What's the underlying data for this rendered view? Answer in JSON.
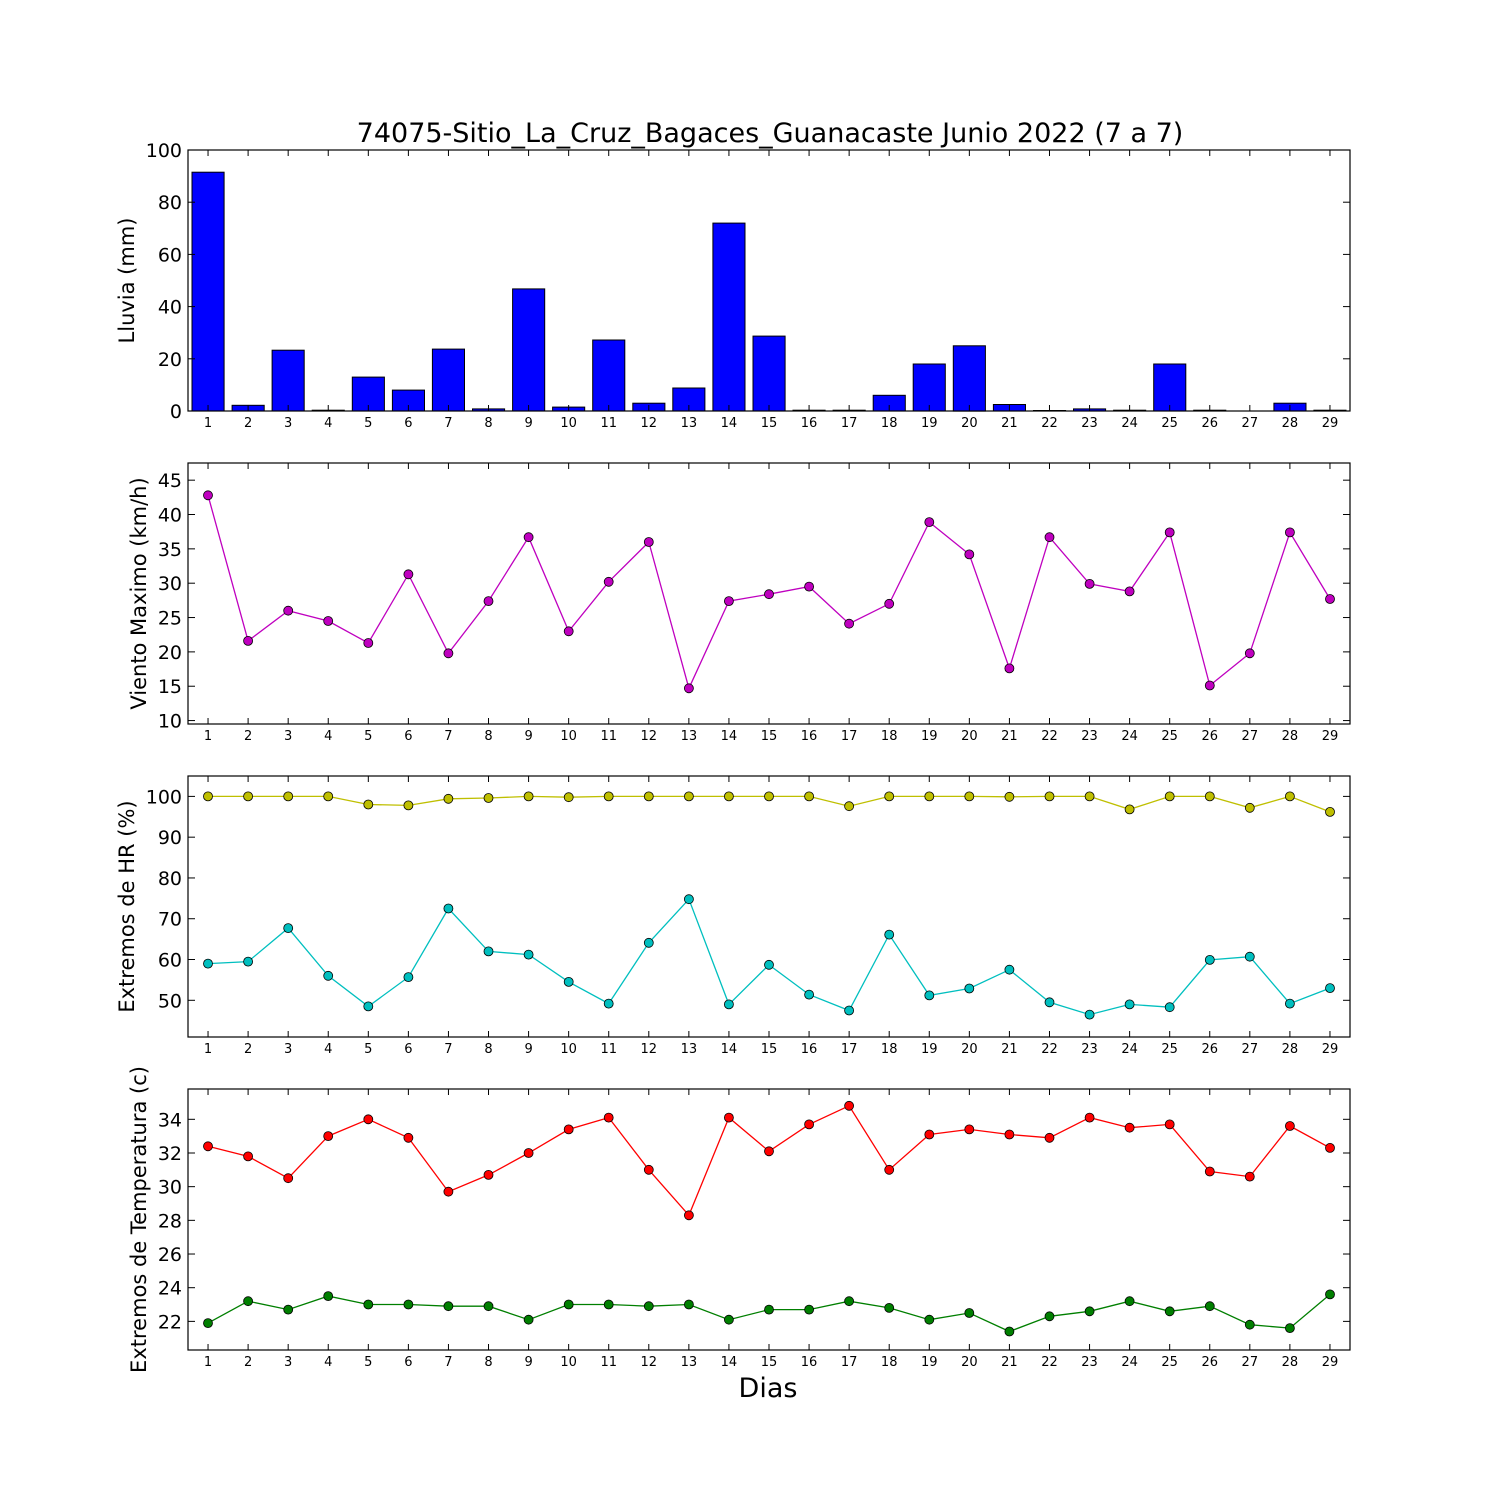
{
  "chart_data": {
    "title": "74075-Sitio_La_Cruz_Bagaces_Guanacaste Junio 2022  (7 a 7)",
    "xlabel": "Dias",
    "days": [
      1,
      2,
      3,
      4,
      5,
      6,
      7,
      8,
      9,
      10,
      11,
      12,
      13,
      14,
      15,
      16,
      17,
      18,
      19,
      20,
      21,
      22,
      23,
      24,
      25,
      26,
      27,
      28,
      29
    ],
    "panels": [
      {
        "type": "bar",
        "ylabel": "Lluvia (mm)",
        "ylim": [
          0,
          100
        ],
        "yticks": [
          0,
          20,
          40,
          60,
          80,
          100
        ],
        "series": [
          {
            "color": "#0000ff",
            "values": [
              91.5,
              2.2,
              23.3,
              0.3,
              13.0,
              8.0,
              23.7,
              0.8,
              46.8,
              1.5,
              27.2,
              3.0,
              8.8,
              72.0,
              28.7,
              0.3,
              0.3,
              6.0,
              18.0,
              25.0,
              2.5,
              0.2,
              0.8,
              0.3,
              18.0,
              0.3,
              0.0,
              3.0,
              0.3
            ]
          }
        ]
      },
      {
        "type": "line",
        "ylabel": "Viento Maximo (km/h)",
        "ylim": [
          9.5,
          47.5
        ],
        "yticks": [
          10,
          15,
          20,
          25,
          30,
          35,
          40,
          45
        ],
        "series": [
          {
            "color": "#bf00bf",
            "values": [
              42.8,
              21.6,
              26.0,
              24.5,
              21.3,
              31.3,
              19.8,
              27.4,
              36.7,
              23.0,
              30.2,
              36.0,
              14.7,
              27.4,
              28.4,
              29.5,
              24.1,
              27.0,
              38.9,
              34.2,
              17.6,
              36.7,
              29.9,
              28.8,
              37.4,
              15.1,
              19.8,
              37.4,
              27.7
            ]
          }
        ]
      },
      {
        "type": "line",
        "ylabel": "Extremos de HR (%)",
        "ylim": [
          41,
          105
        ],
        "yticks": [
          50,
          60,
          70,
          80,
          90,
          100
        ],
        "series": [
          {
            "color": "#bfbf00",
            "values": [
              100,
              100,
              100,
              100,
              98,
              97.8,
              99.4,
              99.6,
              100,
              99.8,
              100,
              100,
              100,
              100,
              100,
              100,
              97.6,
              100,
              100,
              100,
              99.9,
              100,
              100,
              96.8,
              100,
              100,
              97.2,
              100,
              96.2
            ]
          },
          {
            "color": "#00bfbf",
            "values": [
              59.0,
              59.5,
              67.7,
              56.0,
              48.5,
              55.7,
              72.5,
              62.0,
              61.2,
              54.5,
              49.2,
              64.1,
              74.8,
              49.0,
              58.7,
              51.4,
              47.5,
              66.1,
              51.2,
              52.9,
              57.5,
              49.5,
              46.5,
              49.0,
              48.3,
              59.9,
              60.7,
              49.2,
              53.0
            ]
          }
        ]
      },
      {
        "type": "line",
        "ylabel": "Extremos de Temperatura (c)",
        "ylim": [
          20.3,
          35.8
        ],
        "yticks": [
          22,
          24,
          26,
          28,
          30,
          32,
          34
        ],
        "series": [
          {
            "color": "#ff0000",
            "values": [
              32.4,
              31.8,
              30.5,
              33.0,
              34.0,
              32.9,
              29.7,
              30.7,
              32.0,
              33.4,
              34.1,
              31.0,
              28.3,
              34.1,
              32.1,
              33.7,
              34.8,
              31.0,
              33.1,
              33.4,
              33.1,
              32.9,
              34.1,
              33.5,
              33.7,
              30.9,
              30.6,
              33.6,
              32.3
            ]
          },
          {
            "color": "#007f00",
            "values": [
              21.9,
              23.2,
              22.7,
              23.5,
              23.0,
              23.0,
              22.9,
              22.9,
              22.1,
              23.0,
              23.0,
              22.9,
              23.0,
              22.1,
              22.7,
              22.7,
              23.2,
              22.8,
              22.1,
              22.5,
              21.4,
              22.3,
              22.6,
              23.2,
              22.6,
              22.9,
              21.8,
              21.6,
              23.6
            ]
          }
        ]
      }
    ]
  }
}
